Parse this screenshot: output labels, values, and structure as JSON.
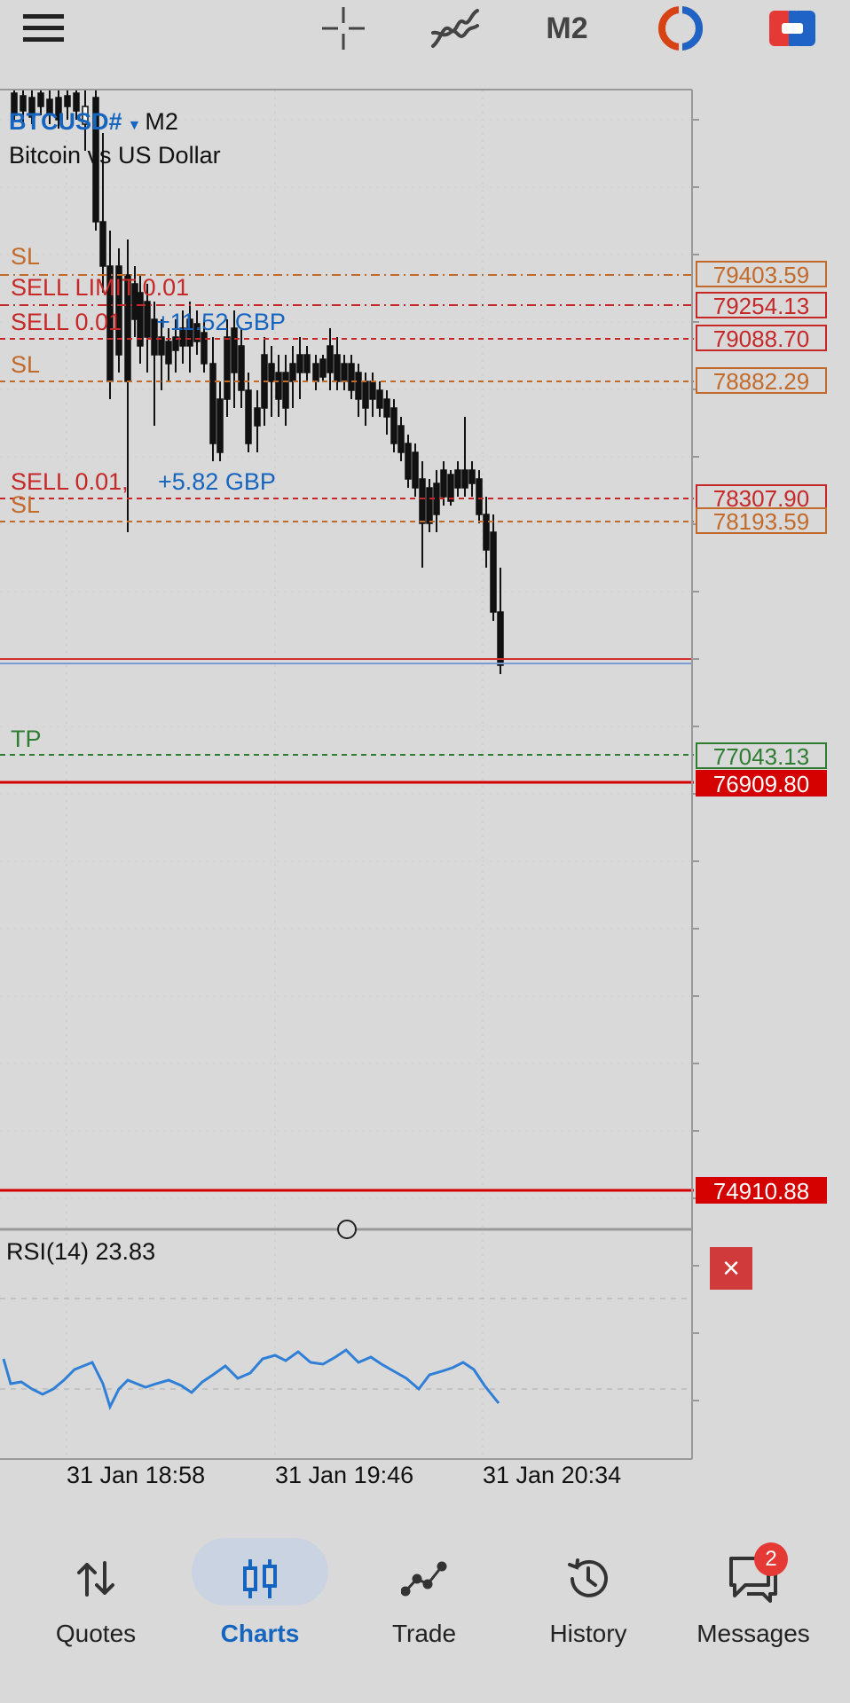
{
  "toolbar": {
    "icons": [
      "menu-icon",
      "crosshair-icon",
      "indicators-icon",
      "timeframe",
      "one-click-trading-icon",
      "trade-icon"
    ],
    "timeframe_label": "M2"
  },
  "chart": {
    "symbol": "BTCUSD#",
    "timeframe": "M2",
    "description": "Bitcoin vs US Dollar",
    "colors": {
      "sl": "#c26a2a",
      "order": "#c62828",
      "tp": "#2e7d32",
      "profit": "#1565c0",
      "bid": "#d50000"
    },
    "levels": [
      {
        "label": "SL",
        "price": "79403.59",
        "kind": "sl"
      },
      {
        "label": "SELL LIMIT 0.01",
        "price": "79254.13",
        "kind": "order"
      },
      {
        "label": "SELL 0.01",
        "profit": "+11.52 GBP",
        "price": "79088.70",
        "kind": "order"
      },
      {
        "label": "SL",
        "price": "78882.29",
        "kind": "sl"
      },
      {
        "label": "SELL 0.01,",
        "profit": "+5.82 GBP",
        "price": "78307.90",
        "kind": "order"
      },
      {
        "label": "SL",
        "price": "78193.59",
        "kind": "sl"
      },
      {
        "label": "TP",
        "price": "77043.13",
        "kind": "tp"
      },
      {
        "label": "",
        "price": "76909.80",
        "kind": "bid"
      },
      {
        "label": "",
        "price": "74910.88",
        "kind": "bid"
      }
    ],
    "time_labels": [
      "31 Jan 18:58",
      "31 Jan 19:46",
      "31 Jan 20:34"
    ]
  },
  "rsi": {
    "title": "RSI(14) 23.83",
    "close": "×"
  },
  "nav": {
    "items": [
      {
        "label": "Quotes",
        "icon": "quotes-icon"
      },
      {
        "label": "Charts",
        "icon": "charts-icon",
        "active": true
      },
      {
        "label": "Trade",
        "icon": "trade-icon"
      },
      {
        "label": "History",
        "icon": "history-icon"
      },
      {
        "label": "Messages",
        "icon": "messages-icon",
        "badge": "2"
      }
    ]
  }
}
